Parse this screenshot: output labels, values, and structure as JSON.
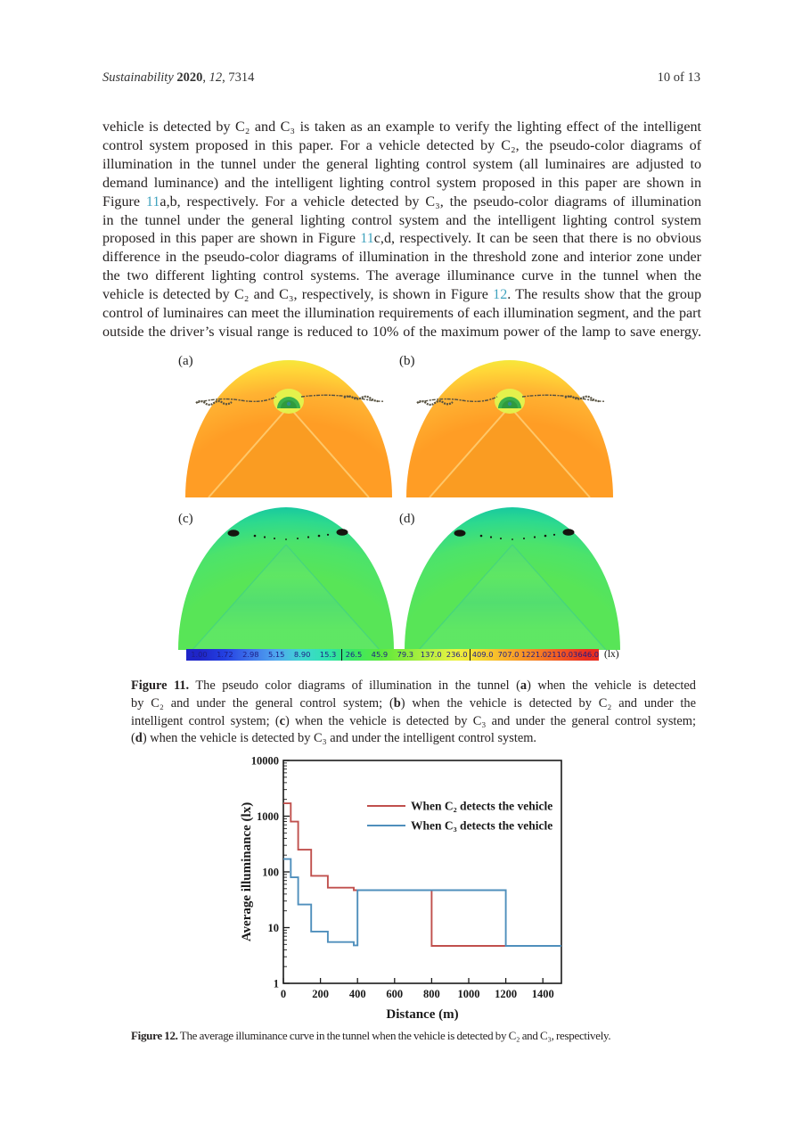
{
  "header": {
    "left_segments": [
      {
        "t": "Sustainability ",
        "i": true
      },
      {
        "t": "2020",
        "b": true
      },
      {
        "t": ", "
      },
      {
        "t": "12",
        "i": true
      },
      {
        "t": ", 7314"
      }
    ],
    "page_info": "10 of 13"
  },
  "body": {
    "lines": [
      [
        {
          "t": "vehicle is detected by C₂ and C₃ is taken as an example to verify the lighting effect of the intelligent"
        }
      ],
      [
        {
          "t": "control system proposed in this paper. For a vehicle detected by C₂, the pseudo-color diagrams of"
        }
      ],
      [
        {
          "t": "illumination in the tunnel under the general lighting control system (all luminaires are adjusted to"
        }
      ],
      [
        {
          "t": "demand luminance) and the intelligent lighting control system proposed in this paper are shown in"
        }
      ],
      [
        {
          "t": "Figure "
        },
        {
          "t": "11",
          "link": true
        },
        {
          "t": "a,b, respectively. For a vehicle detected by C₃, the pseudo-color diagrams of illumination"
        }
      ],
      [
        {
          "t": "in the tunnel under the general lighting control system and the intelligent lighting control system"
        }
      ],
      [
        {
          "t": "proposed in this paper are shown in Figure "
        },
        {
          "t": "11",
          "link": true
        },
        {
          "t": "c,d, respectively. It can be seen that there is no obvious"
        }
      ],
      [
        {
          "t": "difference in the pseudo-color diagrams of illumination in the threshold zone and interior zone under"
        }
      ],
      [
        {
          "t": "the two different lighting control systems. The average illuminance curve in the tunnel when the"
        }
      ],
      [
        {
          "t": "vehicle is detected by C₂ and C₃, respectively, is shown in Figure "
        },
        {
          "t": "12",
          "link": true
        },
        {
          "t": ". The results show that the group"
        }
      ],
      [
        {
          "t": "control of luminaires can meet the illumination requirements of each illumination segment, and the part"
        }
      ],
      [
        {
          "t": "outside the driver’s visual range is reduced to 10% of the maximum power of the lamp to save energy."
        }
      ]
    ]
  },
  "figure11": {
    "panel_labels": [
      "(a)",
      "(b)",
      "(c)",
      "(d)"
    ],
    "warm_colors": {
      "core": "#ff9d25",
      "mid": "#ffb232",
      "outer": "#ffd738",
      "rim": "#f2ee3b",
      "road": "#f99c22",
      "road_edge": "#ffd27a",
      "tunnel": "#3bb04a",
      "tunnel_dark": "#2f9a3e",
      "halo": "#e3f44e",
      "squiggle": "#55503f"
    },
    "cool_colors": {
      "core": "#58e557",
      "mid": "#4ce36b",
      "outer": "#2cd98f",
      "rim": "#12c4a4",
      "road": "#60e766",
      "road2": "#52dd74",
      "blob": "#15150f"
    },
    "caption_lines": [
      [
        {
          "t": "Figure 11.",
          "b": true
        },
        {
          "t": " The pseudo color diagrams of illumination in the tunnel ("
        },
        {
          "t": "a",
          "b": true
        },
        {
          "t": ") when the vehicle is detected"
        }
      ],
      [
        {
          "t": "by C₂ and under the general control system; ("
        },
        {
          "t": "b",
          "b": true
        },
        {
          "t": ") when the vehicle is detected by C₂ and under the"
        }
      ],
      [
        {
          "t": "intelligent control system; ("
        },
        {
          "t": "c",
          "b": true
        },
        {
          "t": ") when the vehicle is detected by C₃ and under the general control system;"
        }
      ],
      [
        {
          "t": "("
        },
        {
          "t": "d",
          "b": true
        },
        {
          "t": ") when the vehicle is detected by C₃ and under the intelligent control system."
        }
      ]
    ],
    "colorbar": {
      "values": [
        "1.00",
        "1.72",
        "2.98",
        "5.15",
        "8.90",
        "15.3",
        "26.5",
        "45.9",
        "79.3",
        "137.0",
        "236.0",
        "409.0",
        "707.0",
        "1221.0",
        "2110.0",
        "3646.0"
      ],
      "colors": [
        "#1f25c8",
        "#2341e3",
        "#3f74ea",
        "#4fa8ef",
        "#3fd7d0",
        "#2fe3ae",
        "#3ae764",
        "#5ae93f",
        "#8aec3a",
        "#bef043",
        "#eef23f",
        "#f6d32f",
        "#f8ab29",
        "#f68424",
        "#f25823",
        "#e92e20"
      ],
      "dividers": [
        6,
        11
      ],
      "unit": "(lx)",
      "label_color": "#1d1d86"
    }
  },
  "chart_data": {
    "type": "line",
    "style": "step",
    "xlabel": "Distance (m)",
    "ylabel": "Average illuminance (lx)",
    "xlim": [
      0,
      1500
    ],
    "ylim": [
      1,
      10000
    ],
    "yscale": "log",
    "x_ticks": [
      0,
      200,
      400,
      600,
      800,
      1000,
      1200,
      1400
    ],
    "y_ticks": [
      1,
      10,
      100,
      1000,
      10000
    ],
    "grid": false,
    "legend_position": "inside upper center",
    "frame": true,
    "series": [
      {
        "name": "When C₂ detects the vehicle",
        "color": "#c0504d",
        "points": [
          [
            0,
            1700
          ],
          [
            40,
            1700
          ],
          [
            40,
            800
          ],
          [
            80,
            800
          ],
          [
            80,
            250
          ],
          [
            150,
            250
          ],
          [
            150,
            85
          ],
          [
            240,
            85
          ],
          [
            240,
            52
          ],
          [
            380,
            52
          ],
          [
            380,
            47
          ],
          [
            800,
            47
          ],
          [
            800,
            4.7
          ],
          [
            1200,
            4.7
          ],
          [
            1500,
            4.7
          ]
        ]
      },
      {
        "name": "When C₃ detects the vehicle",
        "color": "#4f8fbc",
        "points": [
          [
            0,
            170
          ],
          [
            40,
            170
          ],
          [
            40,
            80
          ],
          [
            80,
            80
          ],
          [
            80,
            26
          ],
          [
            150,
            26
          ],
          [
            150,
            8.5
          ],
          [
            240,
            8.5
          ],
          [
            240,
            5.5
          ],
          [
            380,
            5.5
          ],
          [
            380,
            4.8
          ],
          [
            400,
            4.8
          ],
          [
            400,
            47
          ],
          [
            1200,
            47
          ],
          [
            1200,
            4.7
          ],
          [
            1500,
            4.7
          ]
        ]
      }
    ]
  },
  "figure12": {
    "caption_segments": [
      {
        "t": "Figure 12.",
        "b": true
      },
      {
        "t": " The average illuminance curve in the tunnel when the vehicle is detected by C₂ and C₃, respectively."
      }
    ]
  }
}
